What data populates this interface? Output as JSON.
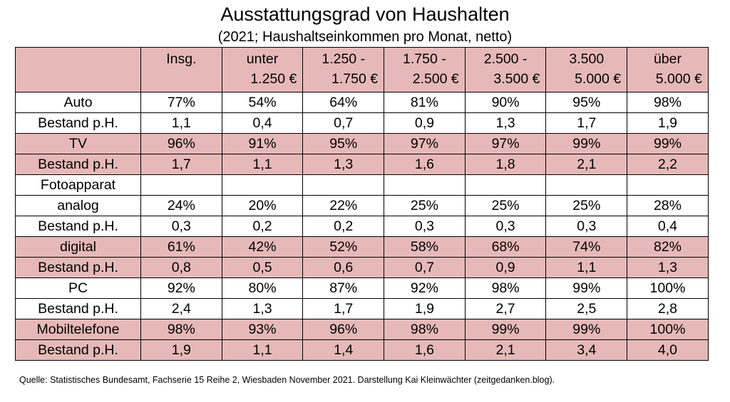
{
  "title": "Ausstattungsgrad von Haushalten",
  "subtitle": "(2021; Haushaltseinkommen pro Monat, netto)",
  "source": "Quelle: Statistisches Bundesamt, Fachserie 15 Reihe 2, Wiesbaden November 2021. Darstellung Kai Kleinwächter (zeitgedanken.blog).",
  "colors": {
    "shade": "#e6b9b8",
    "border": "#000000"
  },
  "chart_data": {
    "type": "table",
    "title": "Ausstattungsgrad von Haushalten",
    "subtitle": "(2021; Haushaltseinkommen pro Monat, netto)",
    "columns": [
      [
        "Insg.",
        ""
      ],
      [
        "unter",
        "1.250 €"
      ],
      [
        "1.250 -",
        "1.750 €"
      ],
      [
        "1.750 -",
        "2.500 €"
      ],
      [
        "2.500 -",
        "3.500 €"
      ],
      [
        "3.500",
        "5.000 €"
      ],
      [
        "über",
        "5.000 €"
      ]
    ],
    "rows": [
      {
        "label": "Auto",
        "shaded": false,
        "values": [
          "77%",
          "54%",
          "64%",
          "81%",
          "90%",
          "95%",
          "98%"
        ]
      },
      {
        "label": "Bestand p.H.",
        "shaded": false,
        "values": [
          "1,1",
          "0,4",
          "0,7",
          "0,9",
          "1,3",
          "1,7",
          "1,9"
        ]
      },
      {
        "label": "TV",
        "shaded": true,
        "values": [
          "96%",
          "91%",
          "95%",
          "97%",
          "97%",
          "99%",
          "99%"
        ]
      },
      {
        "label": "Bestand p.H.",
        "shaded": true,
        "values": [
          "1,7",
          "1,1",
          "1,3",
          "1,6",
          "1,8",
          "2,1",
          "2,2"
        ]
      },
      {
        "label": "Fotoapparat",
        "shaded": false,
        "values": [
          "",
          "",
          "",
          "",
          "",
          "",
          ""
        ]
      },
      {
        "label": "analog",
        "shaded": false,
        "values": [
          "24%",
          "20%",
          "22%",
          "25%",
          "25%",
          "25%",
          "28%"
        ]
      },
      {
        "label": "Bestand p.H.",
        "shaded": false,
        "values": [
          "0,3",
          "0,2",
          "0,2",
          "0,3",
          "0,3",
          "0,3",
          "0,4"
        ]
      },
      {
        "label": "digital",
        "shaded": true,
        "values": [
          "61%",
          "42%",
          "52%",
          "58%",
          "68%",
          "74%",
          "82%"
        ]
      },
      {
        "label": "Bestand p.H.",
        "shaded": true,
        "values": [
          "0,8",
          "0,5",
          "0,6",
          "0,7",
          "0,9",
          "1,1",
          "1,3"
        ]
      },
      {
        "label": "PC",
        "shaded": false,
        "values": [
          "92%",
          "80%",
          "87%",
          "92%",
          "98%",
          "99%",
          "100%"
        ]
      },
      {
        "label": "Bestand p.H.",
        "shaded": false,
        "values": [
          "2,4",
          "1,3",
          "1,7",
          "1,9",
          "2,7",
          "2,5",
          "2,8"
        ]
      },
      {
        "label": "Mobiltelefone",
        "shaded": true,
        "values": [
          "98%",
          "93%",
          "96%",
          "98%",
          "99%",
          "99%",
          "100%"
        ]
      },
      {
        "label": "Bestand p.H.",
        "shaded": true,
        "values": [
          "1,9",
          "1,1",
          "1,4",
          "1,6",
          "2,1",
          "3,4",
          "4,0"
        ]
      }
    ]
  }
}
